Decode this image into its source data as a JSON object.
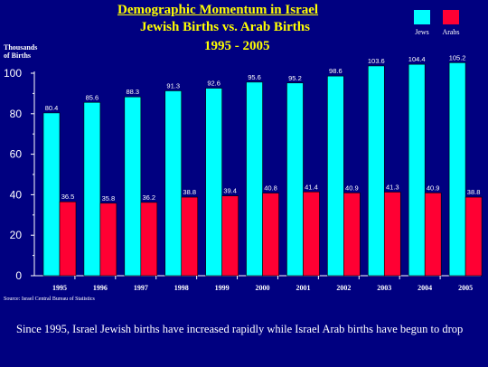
{
  "title": {
    "line1": "Demographic Momentum in Israel",
    "line2": "Jewish Births vs. Arab Births",
    "line3": "1995 - 2005"
  },
  "legend": {
    "jews": "Jews",
    "arabs": "Arabs"
  },
  "colors": {
    "jews": "#00ffff",
    "arabs": "#ff0033",
    "background": "#000080",
    "title": "#ffff00",
    "text": "#ffffff"
  },
  "source": "Source: Israel Central Bureau of Statistics",
  "caption": "Since 1995, Israel Jewish births have increased rapidly while Israel Arab births have begun to drop",
  "chart_data": {
    "type": "bar",
    "title": "Demographic Momentum in Israel Jewish Births vs. Arab Births 1995 - 2005",
    "ylabel": "Thousands\nof Births",
    "xlabel": "",
    "ylim": [
      0,
      100
    ],
    "yticks": [
      0,
      20,
      40,
      60,
      80,
      100
    ],
    "grid": false,
    "legend_position": "top-right",
    "categories": [
      "1995",
      "1996",
      "1997",
      "1998",
      "1999",
      "2000",
      "2001",
      "2002",
      "2003",
      "2004",
      "2005"
    ],
    "series": [
      {
        "name": "Jews",
        "values": [
          80.4,
          85.6,
          88.3,
          91.3,
          92.6,
          95.6,
          95.2,
          98.6,
          103.6,
          104.4,
          105.2
        ]
      },
      {
        "name": "Arabs",
        "values": [
          36.5,
          35.8,
          36.2,
          38.8,
          39.4,
          40.8,
          41.4,
          40.9,
          41.3,
          40.9,
          38.8
        ]
      }
    ]
  }
}
